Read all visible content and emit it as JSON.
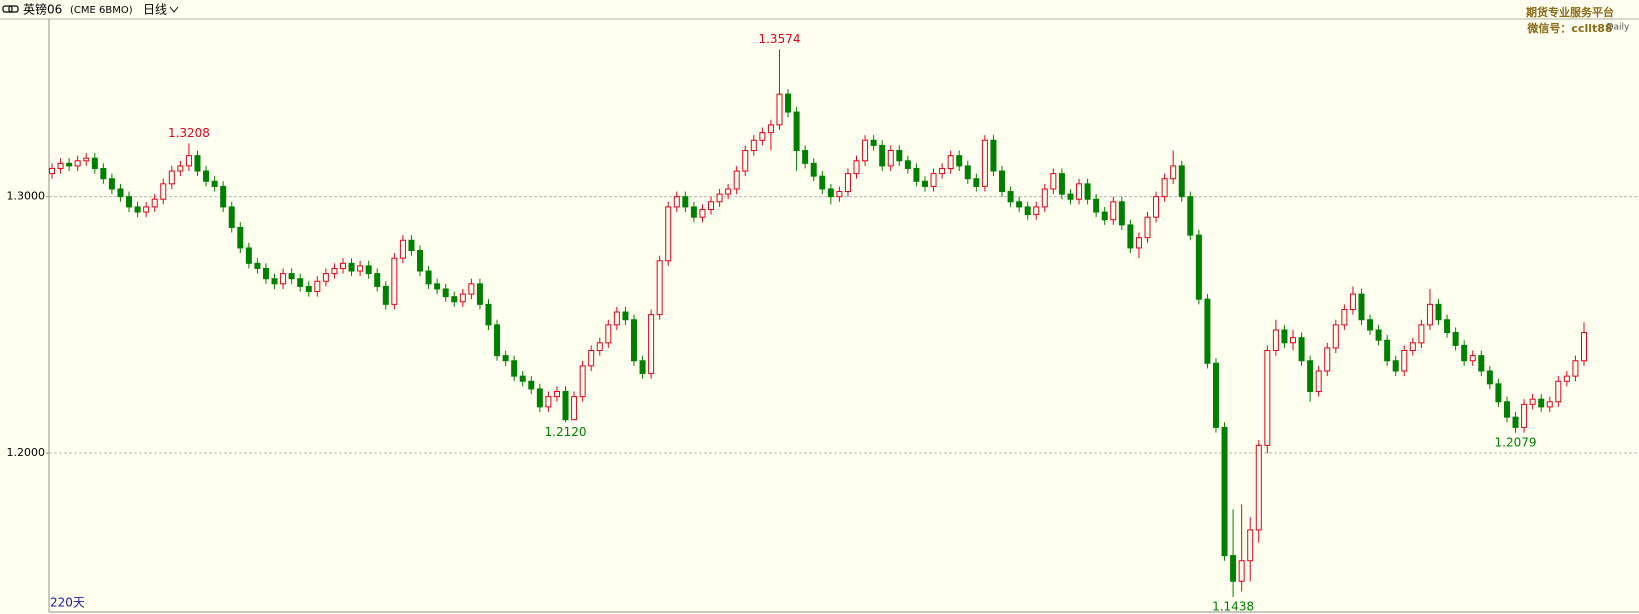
{
  "chart_data": {
    "type": "candlestick",
    "title": "英镑06",
    "subtitle": "(CME 6BMO)",
    "period": "日线",
    "watermark": [
      "期货专业服务平台",
      "微信号：ccllt88"
    ],
    "badge": "Daily",
    "footer": "220天",
    "up_color": "#e8001c",
    "down_color": "#008000",
    "background": "#fffff0",
    "ylim": [
      1.138,
      1.3693
    ],
    "yticks": [
      {
        "value": 1.2,
        "label": "1.2000"
      },
      {
        "value": 1.3,
        "label": "1.3000"
      }
    ],
    "grid": true,
    "open": [
      1.309,
      1.311,
      1.313,
      1.312,
      1.314,
      1.315,
      1.311,
      1.307,
      1.303,
      1.3,
      1.296,
      1.294,
      1.296,
      1.299,
      1.305,
      1.31,
      1.312,
      1.316,
      1.31,
      1.306,
      1.304,
      1.296,
      1.288,
      1.28,
      1.274,
      1.272,
      1.268,
      1.266,
      1.27,
      1.268,
      1.265,
      1.263,
      1.267,
      1.27,
      1.272,
      1.274,
      1.271,
      1.273,
      1.27,
      1.265,
      1.258,
      1.276,
      1.283,
      1.279,
      1.271,
      1.266,
      1.264,
      1.261,
      1.259,
      1.262,
      1.266,
      1.258,
      1.25,
      1.238,
      1.236,
      1.23,
      1.228,
      1.225,
      1.218,
      1.222,
      1.224,
      1.213,
      1.222,
      1.234,
      1.24,
      1.243,
      1.25,
      1.255,
      1.252,
      1.236,
      1.231,
      1.254,
      1.275,
      1.296,
      1.3,
      1.296,
      1.292,
      1.295,
      1.298,
      1.301,
      1.303,
      1.31,
      1.318,
      1.322,
      1.325,
      1.328,
      1.34,
      1.333,
      1.318,
      1.313,
      1.308,
      1.303,
      1.3,
      1.302,
      1.309,
      1.314,
      1.322,
      1.32,
      1.312,
      1.318,
      1.314,
      1.311,
      1.306,
      1.304,
      1.309,
      1.311,
      1.316,
      1.312,
      1.307,
      1.304,
      1.322,
      1.31,
      1.302,
      1.298,
      1.296,
      1.293,
      1.296,
      1.303,
      1.309,
      1.301,
      1.299,
      1.305,
      1.299,
      1.294,
      1.291,
      1.298,
      1.289,
      1.28,
      1.284,
      1.292,
      1.3,
      1.307,
      1.312,
      1.3,
      1.285,
      1.26,
      1.235,
      1.21,
      1.16,
      1.15,
      1.158,
      1.17,
      1.203,
      1.24,
      1.248,
      1.243,
      1.245,
      1.236,
      1.224,
      1.232,
      1.241,
      1.25,
      1.256,
      1.262,
      1.252,
      1.248,
      1.244,
      1.236,
      1.232,
      1.24,
      1.243,
      1.25,
      1.258,
      1.252,
      1.247,
      1.242,
      1.236,
      1.238,
      1.232,
      1.227,
      1.22,
      1.214,
      1.21,
      1.219,
      1.221,
      1.218,
      1.22,
      1.228,
      1.23,
      1.236
    ],
    "high": [
      1.313,
      1.315,
      1.315,
      1.316,
      1.317,
      1.317,
      1.313,
      1.309,
      1.305,
      1.302,
      1.298,
      1.298,
      1.301,
      1.307,
      1.312,
      1.314,
      1.3208,
      1.318,
      1.312,
      1.308,
      1.306,
      1.298,
      1.29,
      1.282,
      1.276,
      1.274,
      1.27,
      1.272,
      1.272,
      1.27,
      1.267,
      1.269,
      1.272,
      1.274,
      1.276,
      1.276,
      1.275,
      1.275,
      1.272,
      1.267,
      1.278,
      1.285,
      1.285,
      1.281,
      1.273,
      1.268,
      1.266,
      1.263,
      1.264,
      1.268,
      1.268,
      1.26,
      1.252,
      1.24,
      1.238,
      1.232,
      1.23,
      1.227,
      1.224,
      1.226,
      1.226,
      1.224,
      1.236,
      1.242,
      1.245,
      1.252,
      1.257,
      1.257,
      1.254,
      1.238,
      1.256,
      1.277,
      1.298,
      1.302,
      1.302,
      1.298,
      1.297,
      1.3,
      1.303,
      1.305,
      1.312,
      1.32,
      1.324,
      1.327,
      1.33,
      1.3574,
      1.342,
      1.335,
      1.32,
      1.315,
      1.31,
      1.305,
      1.304,
      1.311,
      1.316,
      1.324,
      1.324,
      1.322,
      1.32,
      1.32,
      1.316,
      1.313,
      1.308,
      1.311,
      1.313,
      1.318,
      1.318,
      1.314,
      1.309,
      1.324,
      1.324,
      1.312,
      1.304,
      1.3,
      1.298,
      1.298,
      1.305,
      1.311,
      1.311,
      1.303,
      1.307,
      1.307,
      1.301,
      1.296,
      1.3,
      1.3,
      1.291,
      1.286,
      1.294,
      1.302,
      1.309,
      1.318,
      1.314,
      1.302,
      1.287,
      1.262,
      1.237,
      1.212,
      1.178,
      1.18,
      1.175,
      1.205,
      1.242,
      1.252,
      1.25,
      1.248,
      1.247,
      1.238,
      1.234,
      1.243,
      1.252,
      1.258,
      1.265,
      1.264,
      1.254,
      1.25,
      1.246,
      1.238,
      1.242,
      1.245,
      1.252,
      1.264,
      1.26,
      1.254,
      1.249,
      1.244,
      1.24,
      1.24,
      1.234,
      1.229,
      1.222,
      1.216,
      1.221,
      1.223,
      1.223,
      1.222,
      1.23,
      1.232,
      1.238,
      1.251
    ],
    "low": [
      1.307,
      1.309,
      1.31,
      1.31,
      1.312,
      1.309,
      1.305,
      1.301,
      1.298,
      1.294,
      1.292,
      1.292,
      1.294,
      1.297,
      1.303,
      1.308,
      1.31,
      1.308,
      1.304,
      1.302,
      1.294,
      1.286,
      1.278,
      1.272,
      1.27,
      1.266,
      1.264,
      1.264,
      1.266,
      1.263,
      1.261,
      1.261,
      1.265,
      1.268,
      1.27,
      1.269,
      1.269,
      1.268,
      1.263,
      1.256,
      1.256,
      1.274,
      1.277,
      1.269,
      1.264,
      1.262,
      1.259,
      1.257,
      1.257,
      1.26,
      1.256,
      1.248,
      1.236,
      1.234,
      1.228,
      1.226,
      1.223,
      1.216,
      1.216,
      1.22,
      1.212,
      1.213,
      1.22,
      1.232,
      1.238,
      1.241,
      1.248,
      1.25,
      1.234,
      1.229,
      1.229,
      1.252,
      1.273,
      1.294,
      1.294,
      1.29,
      1.29,
      1.293,
      1.296,
      1.299,
      1.301,
      1.308,
      1.316,
      1.32,
      1.318,
      1.326,
      1.331,
      1.31,
      1.311,
      1.306,
      1.301,
      1.297,
      1.298,
      1.3,
      1.307,
      1.312,
      1.318,
      1.31,
      1.31,
      1.312,
      1.309,
      1.304,
      1.302,
      1.302,
      1.307,
      1.309,
      1.31,
      1.305,
      1.302,
      1.302,
      1.308,
      1.3,
      1.296,
      1.294,
      1.291,
      1.291,
      1.294,
      1.301,
      1.299,
      1.297,
      1.297,
      1.297,
      1.292,
      1.289,
      1.289,
      1.287,
      1.278,
      1.276,
      1.282,
      1.29,
      1.298,
      1.305,
      1.298,
      1.283,
      1.258,
      1.233,
      1.208,
      1.158,
      1.1438,
      1.146,
      1.15,
      1.165,
      1.2,
      1.238,
      1.241,
      1.24,
      1.234,
      1.22,
      1.222,
      1.23,
      1.239,
      1.248,
      1.254,
      1.25,
      1.246,
      1.242,
      1.234,
      1.23,
      1.23,
      1.238,
      1.241,
      1.248,
      1.25,
      1.245,
      1.24,
      1.234,
      1.234,
      1.23,
      1.225,
      1.218,
      1.212,
      1.2079,
      1.208,
      1.217,
      1.216,
      1.216,
      1.218,
      1.226,
      1.228,
      1.234
    ],
    "close": [
      1.311,
      1.313,
      1.312,
      1.314,
      1.315,
      1.311,
      1.307,
      1.303,
      1.3,
      1.296,
      1.294,
      1.296,
      1.299,
      1.305,
      1.31,
      1.312,
      1.316,
      1.31,
      1.306,
      1.304,
      1.296,
      1.288,
      1.28,
      1.274,
      1.272,
      1.268,
      1.266,
      1.27,
      1.268,
      1.265,
      1.263,
      1.267,
      1.27,
      1.272,
      1.274,
      1.271,
      1.273,
      1.27,
      1.265,
      1.258,
      1.276,
      1.283,
      1.279,
      1.271,
      1.266,
      1.264,
      1.261,
      1.259,
      1.262,
      1.266,
      1.258,
      1.25,
      1.238,
      1.236,
      1.23,
      1.228,
      1.225,
      1.218,
      1.222,
      1.224,
      1.213,
      1.222,
      1.234,
      1.24,
      1.243,
      1.25,
      1.255,
      1.252,
      1.236,
      1.231,
      1.254,
      1.275,
      1.296,
      1.3,
      1.296,
      1.292,
      1.295,
      1.298,
      1.301,
      1.303,
      1.31,
      1.318,
      1.322,
      1.325,
      1.328,
      1.34,
      1.333,
      1.318,
      1.313,
      1.308,
      1.303,
      1.3,
      1.302,
      1.309,
      1.314,
      1.322,
      1.32,
      1.312,
      1.318,
      1.314,
      1.311,
      1.306,
      1.304,
      1.309,
      1.311,
      1.316,
      1.312,
      1.307,
      1.304,
      1.322,
      1.31,
      1.302,
      1.298,
      1.296,
      1.293,
      1.296,
      1.303,
      1.309,
      1.301,
      1.299,
      1.305,
      1.299,
      1.294,
      1.291,
      1.298,
      1.289,
      1.28,
      1.284,
      1.292,
      1.3,
      1.307,
      1.312,
      1.3,
      1.285,
      1.26,
      1.235,
      1.21,
      1.16,
      1.15,
      1.158,
      1.17,
      1.203,
      1.24,
      1.248,
      1.243,
      1.245,
      1.236,
      1.224,
      1.232,
      1.241,
      1.25,
      1.256,
      1.262,
      1.252,
      1.248,
      1.244,
      1.236,
      1.232,
      1.24,
      1.243,
      1.25,
      1.258,
      1.252,
      1.247,
      1.242,
      1.236,
      1.238,
      1.232,
      1.227,
      1.22,
      1.214,
      1.21,
      1.219,
      1.221,
      1.218,
      1.22,
      1.228,
      1.23,
      1.236,
      1.247
    ],
    "high_labels": {
      "16": "1.3208",
      "85": "1.3574"
    },
    "low_labels": {
      "60": "1.2120",
      "138": "1.1438",
      "171": "1.2079"
    }
  }
}
